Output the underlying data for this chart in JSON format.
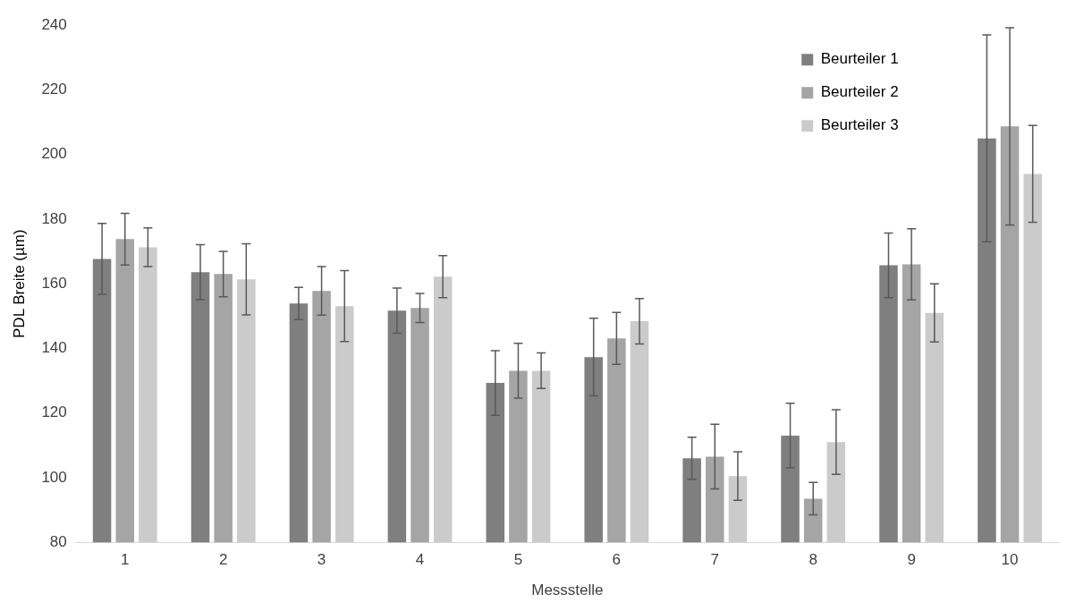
{
  "chart_data": {
    "type": "bar",
    "xlabel": "Messstelle",
    "ylabel": "PDL Breite (µm)",
    "categories": [
      "1",
      "2",
      "3",
      "4",
      "5",
      "6",
      "7",
      "8",
      "9",
      "10"
    ],
    "series": [
      {
        "name": "Beurteiler 1",
        "color": "#7f7f7f",
        "values": [
          167.7,
          163.6,
          153.9,
          151.7,
          129.3,
          137.3,
          106,
          113,
          165.7,
          205
        ],
        "errors": [
          11,
          8.5,
          5,
          7,
          10,
          12,
          6.5,
          10,
          10,
          32
        ]
      },
      {
        "name": "Beurteiler 2",
        "color": "#a5a5a5",
        "values": [
          173.8,
          163,
          157.8,
          152.5,
          133.1,
          143.1,
          106.5,
          93.5,
          166,
          208.7
        ],
        "errors": [
          8,
          7,
          7.5,
          4.5,
          8.5,
          8,
          10,
          5,
          11,
          30.5
        ]
      },
      {
        "name": "Beurteiler 3",
        "color": "#cbcbcb",
        "values": [
          171.3,
          161.4,
          153.1,
          162.2,
          133.1,
          148.4,
          100.5,
          111,
          151,
          194
        ],
        "errors": [
          6,
          11,
          11,
          6.5,
          5.5,
          7,
          7.5,
          10,
          9,
          15
        ]
      }
    ],
    "ylim": [
      80,
      240
    ],
    "yticks": [
      80,
      100,
      120,
      140,
      160,
      180,
      200,
      220,
      240
    ],
    "grid": false,
    "legend": "top right"
  }
}
